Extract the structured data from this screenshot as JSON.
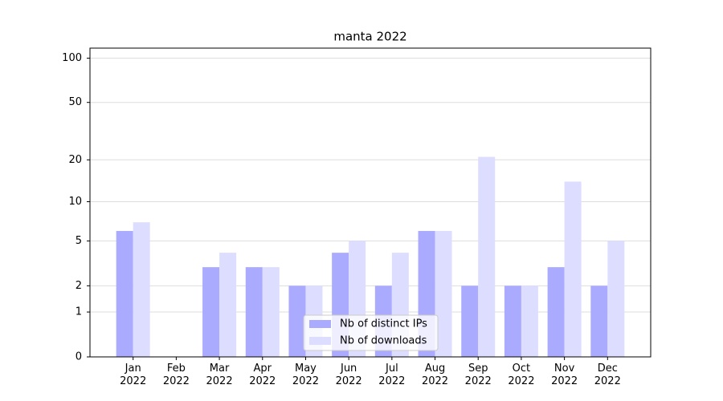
{
  "chart_data": {
    "type": "bar",
    "title": "manta 2022",
    "categories": [
      "Jan\n2022",
      "Feb\n2022",
      "Mar\n2022",
      "Apr\n2022",
      "May\n2022",
      "Jun\n2022",
      "Jul\n2022",
      "Aug\n2022",
      "Sep\n2022",
      "Oct\n2022",
      "Nov\n2022",
      "Dec\n2022"
    ],
    "series": [
      {
        "name": "Nb of distinct IPs",
        "color": "#aaaaff",
        "values": [
          6,
          0,
          3,
          3,
          2,
          4,
          2,
          6,
          2,
          2,
          3,
          2
        ]
      },
      {
        "name": "Nb of downloads",
        "color": "#ddddff",
        "values": [
          7,
          0,
          4,
          3,
          2,
          5,
          4,
          6,
          21,
          2,
          14,
          5
        ]
      }
    ],
    "yscale": "log1p",
    "ylim": [
      0,
      117
    ],
    "yticks": [
      0,
      1,
      2,
      5,
      10,
      20,
      50,
      100
    ],
    "grid": true,
    "legend": "lower center"
  }
}
